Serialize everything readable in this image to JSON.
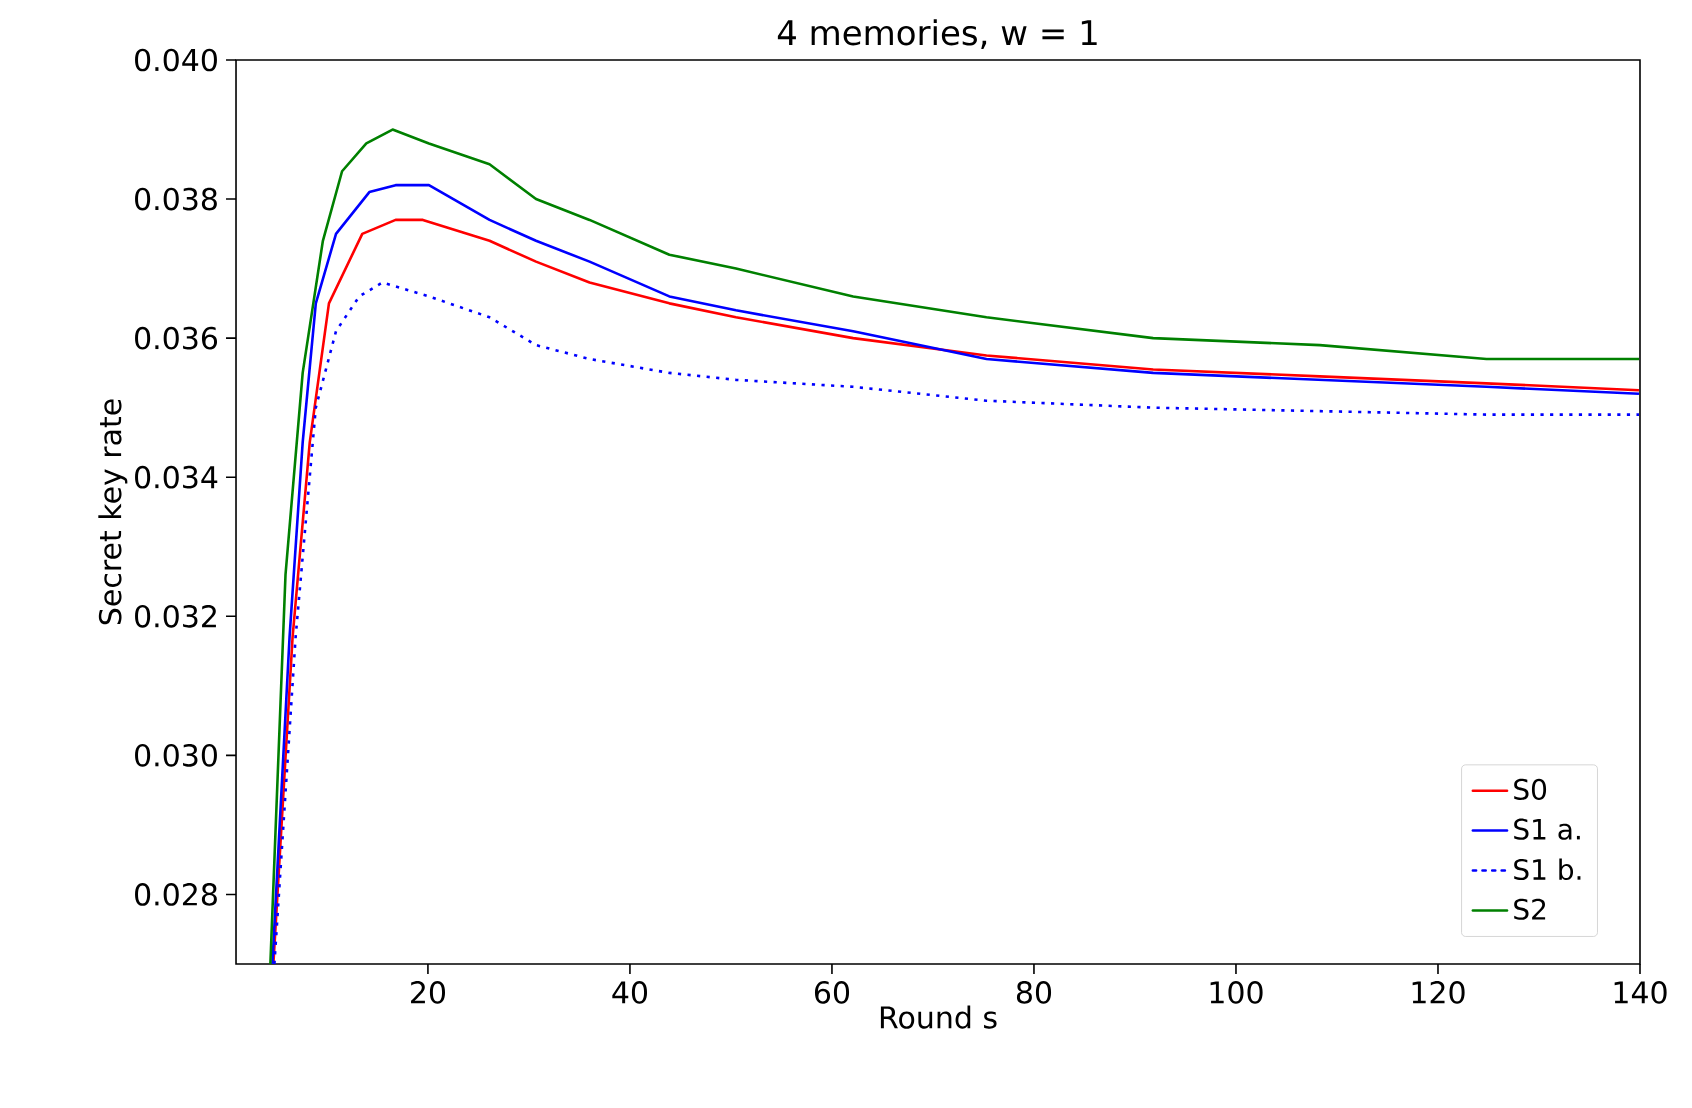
{
  "chart_data": {
    "type": "line",
    "title": "4 memories, w = 1",
    "xlabel": "Round s",
    "ylabel": "Secret key rate",
    "xlim": [
      1,
      140
    ],
    "ylim": [
      0.027,
      0.04
    ],
    "xticks": [
      20,
      40,
      60,
      80,
      100,
      120,
      140
    ],
    "yticks": [
      0.028,
      {
        "value": 0.03,
        "label": "0.030"
      },
      0.032,
      0.034,
      0.036,
      0.038,
      {
        "value": 0.04,
        "label": "0.040"
      }
    ],
    "legend": "bottom right",
    "grid": false,
    "series": [
      {
        "name": "S0",
        "color": "#ff0000",
        "line_style": "solid",
        "x": [
          4.7,
          6.6,
          8.3,
          10.2,
          13.5,
          16.8,
          19.5,
          26.1,
          30.7,
          36.0,
          43.9,
          50.5,
          62.1,
          75.3,
          91.8,
          108.3,
          124.8,
          139.9
        ],
        "values": [
          0.027,
          0.0317,
          0.0345,
          0.0365,
          0.0375,
          0.0377,
          0.0377,
          0.0374,
          0.0371,
          0.0368,
          0.0365,
          0.0363,
          0.036,
          0.03575,
          0.03555,
          0.03545,
          0.03535,
          0.03525
        ]
      },
      {
        "name": "S1 a.",
        "color": "#0000ff",
        "line_style": "solid",
        "x": [
          4.6,
          6.3,
          7.6,
          8.9,
          10.9,
          14.2,
          16.8,
          20.1,
          26.1,
          30.7,
          36.0,
          43.9,
          50.5,
          62.1,
          75.3,
          91.8,
          108.3,
          124.8,
          139.9
        ],
        "values": [
          0.027,
          0.0317,
          0.0345,
          0.0365,
          0.0375,
          0.0381,
          0.0382,
          0.0382,
          0.0377,
          0.0374,
          0.0371,
          0.0366,
          0.0364,
          0.0361,
          0.0357,
          0.0355,
          0.0354,
          0.0353,
          0.0352
        ]
      },
      {
        "name": "S1 b.",
        "color": "#0000ff",
        "line_style": "dotted",
        "x": [
          4.8,
          6.9,
          8.9,
          10.9,
          13.2,
          15.5,
          20.1,
          26.1,
          30.7,
          36.0,
          43.9,
          50.5,
          62.1,
          75.3,
          91.8,
          108.3,
          124.8,
          139.9
        ],
        "values": [
          0.027,
          0.0317,
          0.035,
          0.0361,
          0.0366,
          0.0368,
          0.0366,
          0.0363,
          0.0359,
          0.0357,
          0.0355,
          0.0354,
          0.0353,
          0.0351,
          0.035,
          0.03495,
          0.0349,
          0.0349
        ]
      },
      {
        "name": "S2",
        "color": "#008000",
        "line_style": "solid",
        "x": [
          4.4,
          5.9,
          7.6,
          9.6,
          11.5,
          13.9,
          16.5,
          20.1,
          26.1,
          30.7,
          36.0,
          43.9,
          50.5,
          62.1,
          75.3,
          91.8,
          108.3,
          124.8,
          139.9
        ],
        "values": [
          0.027,
          0.0326,
          0.0355,
          0.0374,
          0.0384,
          0.0388,
          0.039,
          0.0388,
          0.0385,
          0.038,
          0.0377,
          0.0372,
          0.037,
          0.0366,
          0.0363,
          0.036,
          0.0359,
          0.0357,
          0.0357
        ]
      }
    ]
  }
}
